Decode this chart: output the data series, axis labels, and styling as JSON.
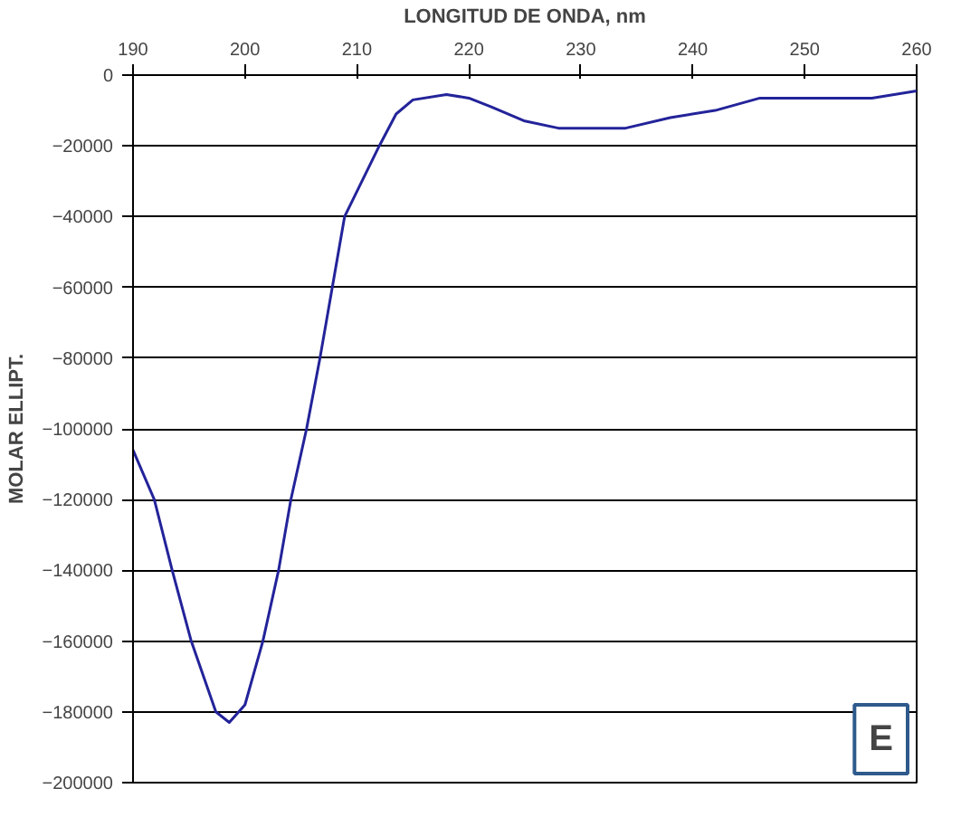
{
  "chart_data": {
    "type": "line",
    "xlabel": "LONGITUD DE ONDA, nm",
    "ylabel": "MOLAR ELLIPT.",
    "x": [
      190,
      191.9,
      193.5,
      195.2,
      197.4,
      198.6,
      200,
      201.6,
      203,
      204.1,
      205.5,
      206.7,
      208.9,
      212,
      213.5,
      215,
      218,
      220,
      222,
      225,
      228,
      231,
      234,
      238,
      242,
      246,
      250,
      256,
      260
    ],
    "series": [
      {
        "color": "#23239a",
        "values": [
          -106000,
          -120000,
          -140000,
          -160000,
          -180000,
          -183000,
          -178000,
          -160000,
          -140000,
          -120000,
          -100000,
          -80000,
          -40000,
          -20000,
          -11000,
          -7000,
          -5500,
          -6500,
          -9000,
          -13000,
          -15000,
          -15000,
          -15000,
          -12000,
          -10000,
          -6500,
          -6500,
          -6500,
          -4500
        ]
      }
    ],
    "xlim": [
      190,
      260
    ],
    "xticks": [
      190,
      200,
      210,
      220,
      230,
      240,
      250,
      260
    ],
    "ylim": [
      -200000,
      0
    ],
    "yticks": [
      0,
      -20000,
      -40000,
      -60000,
      -80000,
      -100000,
      -120000,
      -140000,
      -160000,
      -180000,
      -200000
    ],
    "grid": "y",
    "marker": "none",
    "line_style": "solid",
    "annotations": [
      "E"
    ]
  }
}
